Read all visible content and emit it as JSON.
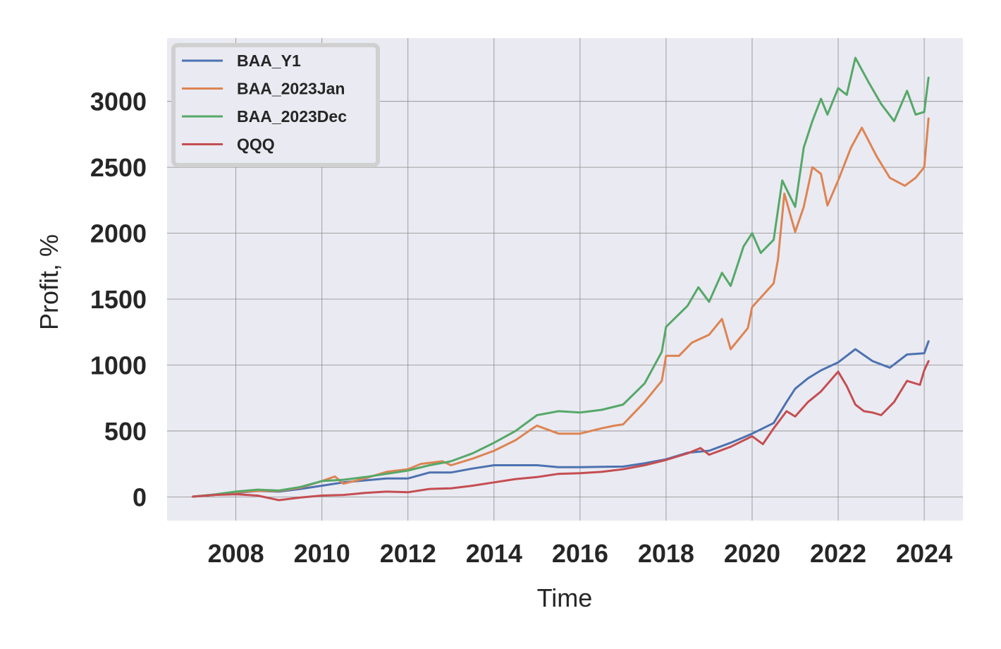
{
  "chart_data": {
    "type": "line",
    "title": "",
    "xlabel": "Time",
    "ylabel": "Profit, %",
    "xlim": [
      2006.4,
      2024.9
    ],
    "ylim": [
      -180,
      3480
    ],
    "grid": true,
    "legend_position": "top-left",
    "background_color": "#eaeaf2",
    "xticks": [
      2008,
      2010,
      2012,
      2014,
      2016,
      2018,
      2020,
      2022,
      2024
    ],
    "xtick_labels": [
      "2008",
      "2010",
      "2012",
      "2014",
      "2016",
      "2018",
      "2020",
      "2022",
      "2024"
    ],
    "yticks": [
      0,
      500,
      1000,
      1500,
      2000,
      2500,
      3000
    ],
    "ytick_labels": [
      "0",
      "500",
      "1000",
      "1500",
      "2000",
      "2500",
      "3000"
    ],
    "series": [
      {
        "name": "BAA_Y1",
        "color": "#4c72b0",
        "x": [
          2007.0,
          2007.5,
          2008.0,
          2008.5,
          2009.0,
          2009.5,
          2010.0,
          2010.5,
          2011.0,
          2011.5,
          2012.0,
          2012.5,
          2013.0,
          2013.5,
          2014.0,
          2014.5,
          2015.0,
          2015.5,
          2016.0,
          2016.5,
          2017.0,
          2017.5,
          2018.0,
          2018.5,
          2019.0,
          2019.5,
          2020.0,
          2020.5,
          2020.8,
          2021.0,
          2021.3,
          2021.6,
          2022.0,
          2022.4,
          2022.8,
          2023.2,
          2023.6,
          2024.0,
          2024.1
        ],
        "y": [
          2,
          15,
          30,
          45,
          40,
          60,
          85,
          110,
          125,
          140,
          140,
          185,
          185,
          215,
          240,
          240,
          240,
          225,
          225,
          228,
          230,
          255,
          285,
          335,
          350,
          410,
          480,
          560,
          720,
          820,
          900,
          960,
          1020,
          1120,
          1030,
          980,
          1080,
          1090,
          1180
        ]
      },
      {
        "name": "BAA_2023Jan",
        "color": "#dd8452",
        "x": [
          2007.0,
          2007.5,
          2008.0,
          2008.5,
          2009.0,
          2009.5,
          2010.0,
          2010.3,
          2010.5,
          2011.0,
          2011.5,
          2012.0,
          2012.3,
          2012.8,
          2013.0,
          2013.5,
          2014.0,
          2014.5,
          2014.9,
          2015.0,
          2015.5,
          2016.0,
          2016.5,
          2016.8,
          2017.0,
          2017.5,
          2017.9,
          2018.0,
          2018.3,
          2018.6,
          2019.0,
          2019.3,
          2019.5,
          2019.9,
          2020.0,
          2020.5,
          2020.6,
          2020.75,
          2021.0,
          2021.2,
          2021.4,
          2021.6,
          2021.75,
          2022.0,
          2022.3,
          2022.55,
          2022.9,
          2023.2,
          2023.55,
          2023.8,
          2024.0,
          2024.1
        ],
        "y": [
          2,
          15,
          35,
          45,
          45,
          70,
          120,
          155,
          100,
          140,
          190,
          210,
          250,
          270,
          240,
          290,
          350,
          430,
          520,
          540,
          480,
          480,
          520,
          540,
          550,
          720,
          880,
          1070,
          1070,
          1170,
          1230,
          1350,
          1120,
          1280,
          1440,
          1620,
          1800,
          2300,
          2010,
          2200,
          2500,
          2450,
          2210,
          2400,
          2650,
          2800,
          2580,
          2420,
          2360,
          2420,
          2500,
          2870
        ]
      },
      {
        "name": "BAA_2023Dec",
        "color": "#55a868",
        "x": [
          2007.0,
          2007.5,
          2008.0,
          2008.5,
          2009.0,
          2009.5,
          2010.0,
          2010.5,
          2011.0,
          2011.5,
          2012.0,
          2012.5,
          2013.0,
          2013.5,
          2014.0,
          2014.5,
          2015.0,
          2015.5,
          2016.0,
          2016.5,
          2017.0,
          2017.5,
          2017.9,
          2018.0,
          2018.5,
          2018.75,
          2019.0,
          2019.3,
          2019.5,
          2019.8,
          2020.0,
          2020.2,
          2020.5,
          2020.7,
          2021.0,
          2021.2,
          2021.4,
          2021.6,
          2021.75,
          2022.0,
          2022.2,
          2022.4,
          2022.7,
          2023.0,
          2023.3,
          2023.6,
          2023.8,
          2024.0,
          2024.1
        ],
        "y": [
          2,
          18,
          40,
          55,
          48,
          75,
          120,
          130,
          150,
          175,
          200,
          240,
          270,
          330,
          410,
          500,
          620,
          650,
          640,
          660,
          700,
          860,
          1100,
          1290,
          1450,
          1590,
          1480,
          1700,
          1600,
          1900,
          2000,
          1850,
          1950,
          2400,
          2200,
          2650,
          2850,
          3020,
          2900,
          3100,
          3050,
          3330,
          3150,
          2980,
          2850,
          3080,
          2900,
          2920,
          3180
        ]
      },
      {
        "name": "QQQ",
        "color": "#c44e52",
        "x": [
          2007.0,
          2007.5,
          2008.0,
          2008.5,
          2009.0,
          2009.5,
          2010.0,
          2010.5,
          2011.0,
          2011.5,
          2012.0,
          2012.5,
          2013.0,
          2013.5,
          2014.0,
          2014.5,
          2015.0,
          2015.5,
          2016.0,
          2016.5,
          2017.0,
          2017.5,
          2018.0,
          2018.5,
          2018.8,
          2019.0,
          2019.5,
          2020.0,
          2020.25,
          2020.5,
          2020.8,
          2021.0,
          2021.3,
          2021.6,
          2022.0,
          2022.2,
          2022.4,
          2022.6,
          2022.8,
          2023.0,
          2023.3,
          2023.6,
          2023.9,
          2024.0,
          2024.1
        ],
        "y": [
          2,
          15,
          20,
          10,
          -25,
          -5,
          10,
          15,
          30,
          40,
          35,
          60,
          65,
          85,
          110,
          135,
          150,
          175,
          180,
          190,
          210,
          240,
          280,
          330,
          370,
          320,
          380,
          460,
          400,
          520,
          650,
          610,
          720,
          800,
          950,
          840,
          700,
          650,
          640,
          620,
          720,
          880,
          850,
          960,
          1030
        ]
      }
    ]
  }
}
